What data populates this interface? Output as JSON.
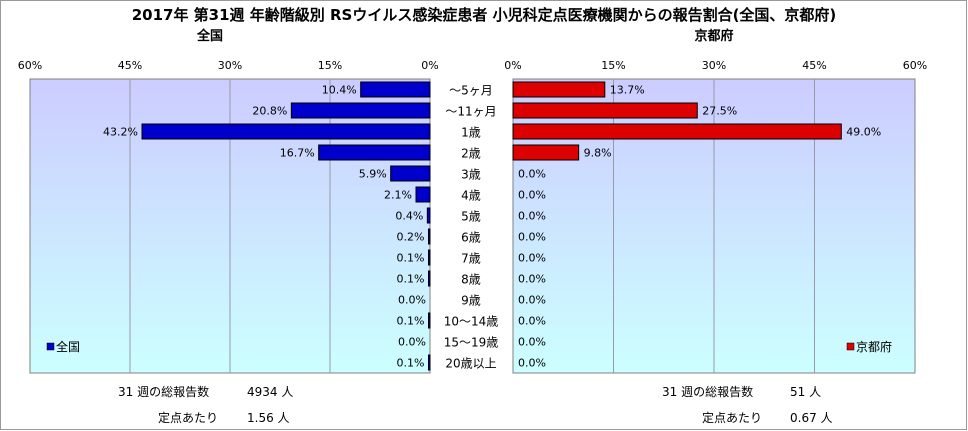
{
  "chart_data": {
    "type": "bar",
    "title": "2017年 第31週 年齢階級別 RSウイルス感染症患者 小児科定点医療機関からの報告割合(全国、京都府)",
    "categories": [
      "～5ヶ月",
      "～11ヶ月",
      "1歳",
      "2歳",
      "3歳",
      "4歳",
      "5歳",
      "6歳",
      "7歳",
      "8歳",
      "9歳",
      "10～14歳",
      "15～19歳",
      "20歳以上"
    ],
    "xlim": [
      0,
      60
    ],
    "ticks": [
      "60%",
      "45%",
      "30%",
      "15%",
      "0%"
    ],
    "ticks_right": [
      "0%",
      "15%",
      "30%",
      "45%",
      "60%"
    ],
    "grid": true,
    "series": [
      {
        "name": "全国",
        "panel_title": "全国",
        "side": "left",
        "color": "#0000cc",
        "values": [
          10.4,
          20.8,
          43.2,
          16.7,
          5.9,
          2.1,
          0.4,
          0.2,
          0.1,
          0.1,
          0.0,
          0.1,
          0.0,
          0.1
        ],
        "labels": [
          "10.4%",
          "20.8%",
          "43.2%",
          "16.7%",
          "5.9%",
          "2.1%",
          "0.4%",
          "0.2%",
          "0.1%",
          "0.1%",
          "0.0%",
          "0.1%",
          "0.0%",
          "0.1%"
        ],
        "legend": "全国",
        "legend_position": "bottom-left"
      },
      {
        "name": "京都府",
        "panel_title": "京都府",
        "side": "right",
        "color": "#dd0000",
        "values": [
          13.7,
          27.5,
          49.0,
          9.8,
          0,
          0,
          0,
          0,
          0,
          0,
          0,
          0,
          0,
          0
        ],
        "labels": [
          "13.7%",
          "27.5%",
          "49.0%",
          "9.8%",
          "0.0%",
          "0.0%",
          "0.0%",
          "0.0%",
          "0.0%",
          "0.0%",
          "0.0%",
          "0.0%",
          "0.0%",
          "0.0%"
        ],
        "legend": "京都府",
        "legend_position": "bottom-right"
      }
    ],
    "plot_bg": "#ccccff",
    "plot_bg_bottom": "#ccffff"
  },
  "footer": {
    "left": {
      "total_label": "31 週の総報告数",
      "total_value": "4934 人",
      "per_label": "定点あたり",
      "per_value": "1.56 人"
    },
    "right": {
      "total_label": "31 週の総報告数",
      "total_value": "51 人",
      "per_label": "定点あたり",
      "per_value": "0.67 人"
    }
  }
}
